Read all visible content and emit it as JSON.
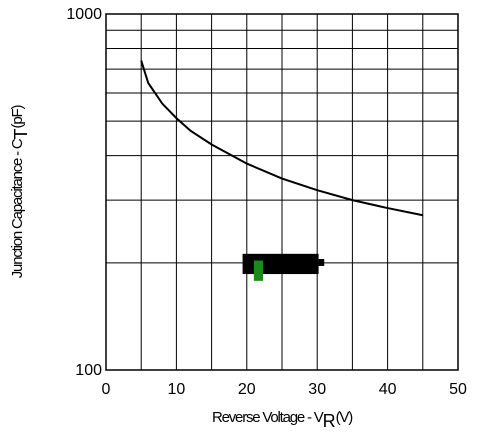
{
  "chart_data": {
    "type": "line",
    "title": "",
    "xlabel": "Reverse Voltage - V",
    "xlabel_subscript": "R",
    "xlabel_unit": "(V)",
    "ylabel": "Junction Capacitance - C",
    "ylabel_subscript": "T",
    "ylabel_unit": "(pF)",
    "xlim": [
      0,
      50
    ],
    "ylim": [
      100,
      1000
    ],
    "y_scale": "log",
    "grid": true,
    "x_ticks": [
      0,
      10,
      20,
      30,
      40,
      50
    ],
    "x_tick_labels": [
      "0",
      "10",
      "20",
      "30",
      "40",
      "50"
    ],
    "y_tick_labels": [
      "1000",
      "100"
    ],
    "series": [
      {
        "x": [
          5,
          6,
          8,
          10,
          12,
          15,
          20,
          25,
          30,
          35,
          40,
          45
        ],
        "y": [
          740,
          640,
          560,
          510,
          470,
          430,
          380,
          345,
          320,
          300,
          285,
          272
        ]
      }
    ],
    "annotations": {
      "black_box_color": "#000000",
      "green_marker_color": "#1a8a1a"
    }
  }
}
